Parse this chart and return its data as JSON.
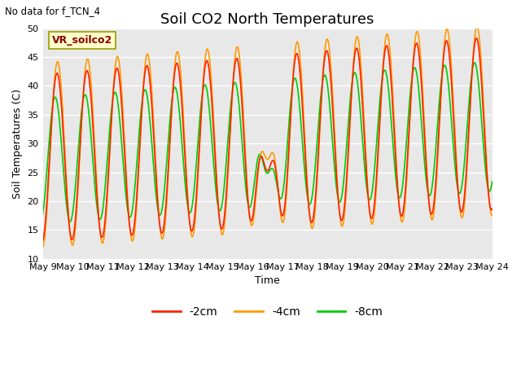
{
  "title": "Soil CO2 North Temperatures",
  "no_data_label": "No data for f_TCN_4",
  "station_label": "VR_soilco2",
  "ylabel": "Soil Temperatures (C)",
  "xlabel": "Time",
  "ylim": [
    10,
    50
  ],
  "background_color": "#e8e8e8",
  "line_colors": {
    "-2cm": "#ff2200",
    "-4cm": "#ff9900",
    "-8cm": "#00cc00"
  },
  "legend_entries": [
    "-2cm",
    "-4cm",
    "-8cm"
  ],
  "x_tick_labels": [
    "May 9",
    "May 10",
    "May 11",
    "May 12",
    "May 13",
    "May 14",
    "May 15",
    "May 16",
    "May 17",
    "May 18",
    "May 19",
    "May 20",
    "May 21",
    "May 22",
    "May 23",
    "May 24"
  ],
  "grid_color": "white",
  "title_fontsize": 13,
  "axis_fontsize": 9,
  "tick_fontsize": 8
}
